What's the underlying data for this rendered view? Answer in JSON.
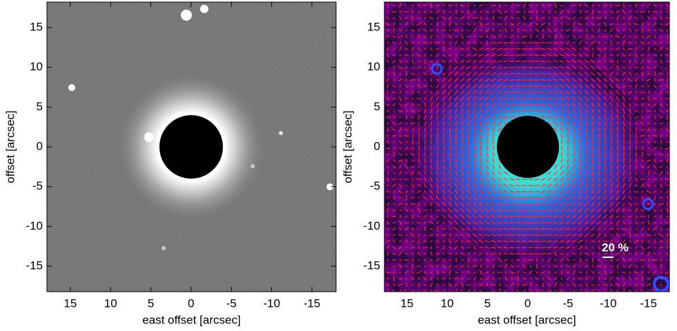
{
  "chart_data": [
    {
      "type": "image",
      "xlabel": "east offset [arcsec]",
      "ylabel": "offset [arcsec]",
      "xlim": [
        17.9,
        -18.0
      ],
      "ylim": [
        -18.2,
        18.2
      ],
      "xticks": [
        15,
        10,
        5,
        0,
        -5,
        -10,
        -15
      ],
      "yticks": [
        -15,
        -10,
        -5,
        0,
        5,
        10,
        15
      ]
    },
    {
      "type": "image",
      "xlabel": "east offset [arcsec]",
      "ylabel": "offset [arcsec]",
      "xlim": [
        17.8,
        -17.6
      ],
      "ylim": [
        -18.2,
        18.2
      ],
      "xticks": [
        15,
        10,
        5,
        0,
        -5,
        -10,
        -15
      ],
      "yticks": [
        -15,
        -10,
        -5,
        0,
        5,
        10,
        15
      ],
      "annotation": "20 %"
    }
  ]
}
